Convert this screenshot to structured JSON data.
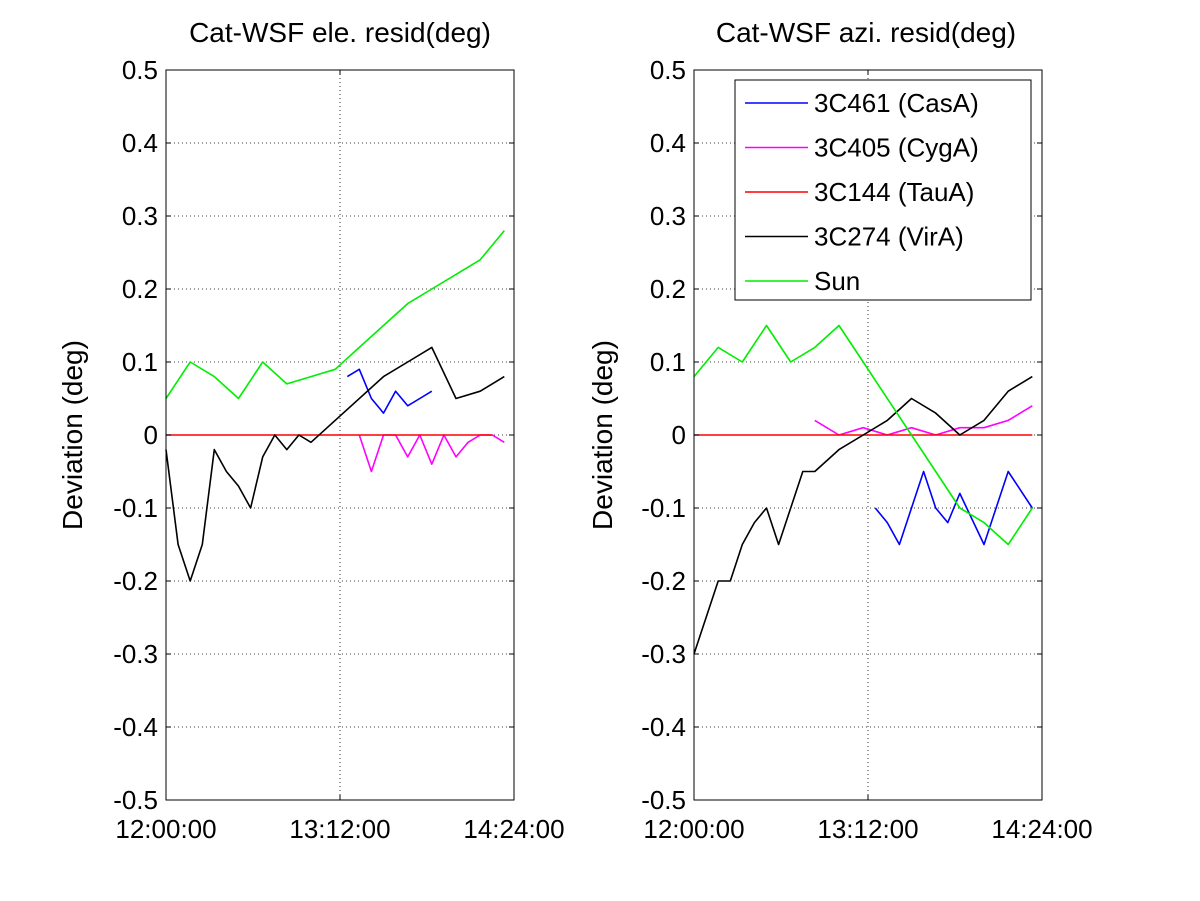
{
  "chart_data": [
    {
      "type": "line",
      "title": "Cat-WSF ele. resid(deg)",
      "xlabel": "",
      "ylabel": "Deviation (deg)",
      "x_ticks": [
        "12:00:00",
        "13:12:00",
        "14:24:00"
      ],
      "y_ticks": [
        "0.5",
        "0.4",
        "0.3",
        "0.2",
        "0.1",
        "0",
        "-0.1",
        "-0.2",
        "-0.3",
        "-0.4",
        "-0.5"
      ],
      "xlim": [
        "12:00:00",
        "14:24:00"
      ],
      "ylim": [
        -0.5,
        0.5
      ],
      "grid": true,
      "series": [
        {
          "name": "3C461 (CasA)",
          "color": "#0000ff",
          "x": [
            "13:15:00",
            "13:20:00",
            "13:25:00",
            "13:30:00",
            "13:35:00",
            "13:40:00",
            "13:45:00",
            "13:50:00"
          ],
          "y": [
            0.08,
            0.09,
            0.05,
            0.03,
            0.06,
            0.04,
            0.05,
            0.06
          ]
        },
        {
          "name": "3C405 (CygA)",
          "color": "#ff00ff",
          "x": [
            "13:20:00",
            "13:25:00",
            "13:30:00",
            "13:35:00",
            "13:40:00",
            "13:45:00",
            "13:50:00",
            "13:55:00",
            "14:00:00",
            "14:05:00",
            "14:10:00",
            "14:15:00",
            "14:20:00"
          ],
          "y": [
            0.0,
            -0.05,
            0.0,
            0.0,
            -0.03,
            0.0,
            -0.04,
            0.0,
            -0.03,
            -0.01,
            0.0,
            0.0,
            -0.01
          ]
        },
        {
          "name": "3C144 (TauA)",
          "color": "#ff0000",
          "x": [
            "12:00:00",
            "12:30:00",
            "13:00:00",
            "13:30:00",
            "14:00:00",
            "14:15:00"
          ],
          "y": [
            0.0,
            0.0,
            0.0,
            0.0,
            0.0,
            0.0
          ]
        },
        {
          "name": "3C274 (VirA)",
          "color": "#000000",
          "x": [
            "12:00:00",
            "12:05:00",
            "12:10:00",
            "12:15:00",
            "12:20:00",
            "12:25:00",
            "12:30:00",
            "12:35:00",
            "12:40:00",
            "12:45:00",
            "12:50:00",
            "12:55:00",
            "13:00:00",
            "13:30:00",
            "13:40:00",
            "13:50:00",
            "14:00:00",
            "14:10:00",
            "14:20:00"
          ],
          "y": [
            -0.02,
            -0.15,
            -0.2,
            -0.15,
            -0.02,
            -0.05,
            -0.07,
            -0.1,
            -0.03,
            0.0,
            -0.02,
            0.0,
            -0.01,
            0.08,
            0.1,
            0.12,
            0.05,
            0.06,
            0.08
          ]
        },
        {
          "name": "Sun",
          "color": "#00ee00",
          "x": [
            "12:00:00",
            "12:10:00",
            "12:20:00",
            "12:30:00",
            "12:40:00",
            "12:50:00",
            "13:00:00",
            "13:10:00",
            "13:20:00",
            "13:30:00",
            "13:40:00",
            "13:50:00",
            "14:00:00",
            "14:10:00",
            "14:20:00"
          ],
          "y": [
            0.05,
            0.1,
            0.08,
            0.05,
            0.1,
            0.07,
            0.08,
            0.09,
            0.12,
            0.15,
            0.18,
            0.2,
            0.22,
            0.24,
            0.28
          ]
        }
      ]
    },
    {
      "type": "line",
      "title": "Cat-WSF azi. resid(deg)",
      "xlabel": "",
      "ylabel": "Deviation (deg)",
      "x_ticks": [
        "12:00:00",
        "13:12:00",
        "14:24:00"
      ],
      "y_ticks": [
        "0.5",
        "0.4",
        "0.3",
        "0.2",
        "0.1",
        "0",
        "-0.1",
        "-0.2",
        "-0.3",
        "-0.4",
        "-0.5"
      ],
      "xlim": [
        "12:00:00",
        "14:24:00"
      ],
      "ylim": [
        -0.5,
        0.5
      ],
      "grid": true,
      "legend_position": "top-right",
      "series": [
        {
          "name": "3C461 (CasA)",
          "color": "#0000ff",
          "x": [
            "13:15:00",
            "13:20:00",
            "13:25:00",
            "13:30:00",
            "13:35:00",
            "13:40:00",
            "13:45:00",
            "13:50:00",
            "14:00:00",
            "14:10:00",
            "14:20:00"
          ],
          "y": [
            -0.1,
            -0.12,
            -0.15,
            -0.1,
            -0.05,
            -0.1,
            -0.12,
            -0.08,
            -0.15,
            -0.05,
            -0.1
          ]
        },
        {
          "name": "3C405 (CygA)",
          "color": "#ff00ff",
          "x": [
            "12:50:00",
            "13:00:00",
            "13:10:00",
            "13:20:00",
            "13:30:00",
            "13:40:00",
            "13:50:00",
            "14:00:00",
            "14:10:00",
            "14:20:00"
          ],
          "y": [
            0.02,
            0.0,
            0.01,
            0.0,
            0.01,
            0.0,
            0.01,
            0.01,
            0.02,
            0.04
          ]
        },
        {
          "name": "3C144 (TauA)",
          "color": "#ff0000",
          "x": [
            "12:00:00",
            "12:30:00",
            "13:00:00",
            "13:30:00",
            "14:00:00",
            "14:20:00"
          ],
          "y": [
            0.0,
            0.0,
            0.0,
            0.0,
            0.0,
            0.0
          ]
        },
        {
          "name": "3C274 (VirA)",
          "color": "#000000",
          "x": [
            "12:00:00",
            "12:05:00",
            "12:10:00",
            "12:15:00",
            "12:20:00",
            "12:25:00",
            "12:30:00",
            "12:35:00",
            "12:40:00",
            "12:45:00",
            "12:50:00",
            "13:00:00",
            "13:10:00",
            "13:20:00",
            "13:30:00",
            "13:40:00",
            "13:50:00",
            "14:00:00",
            "14:10:00",
            "14:20:00"
          ],
          "y": [
            -0.3,
            -0.25,
            -0.2,
            -0.2,
            -0.15,
            -0.12,
            -0.1,
            -0.15,
            -0.1,
            -0.05,
            -0.05,
            -0.02,
            0.0,
            0.02,
            0.05,
            0.03,
            0.0,
            0.02,
            0.06,
            0.08
          ]
        },
        {
          "name": "Sun",
          "color": "#00ee00",
          "x": [
            "12:00:00",
            "12:10:00",
            "12:20:00",
            "12:30:00",
            "12:40:00",
            "12:50:00",
            "13:00:00",
            "13:10:00",
            "13:20:00",
            "13:30:00",
            "13:40:00",
            "13:50:00",
            "14:00:00",
            "14:10:00",
            "14:20:00"
          ],
          "y": [
            0.08,
            0.12,
            0.1,
            0.15,
            0.1,
            0.12,
            0.15,
            0.1,
            0.05,
            0.0,
            -0.05,
            -0.1,
            -0.12,
            -0.15,
            -0.1
          ]
        }
      ]
    }
  ]
}
